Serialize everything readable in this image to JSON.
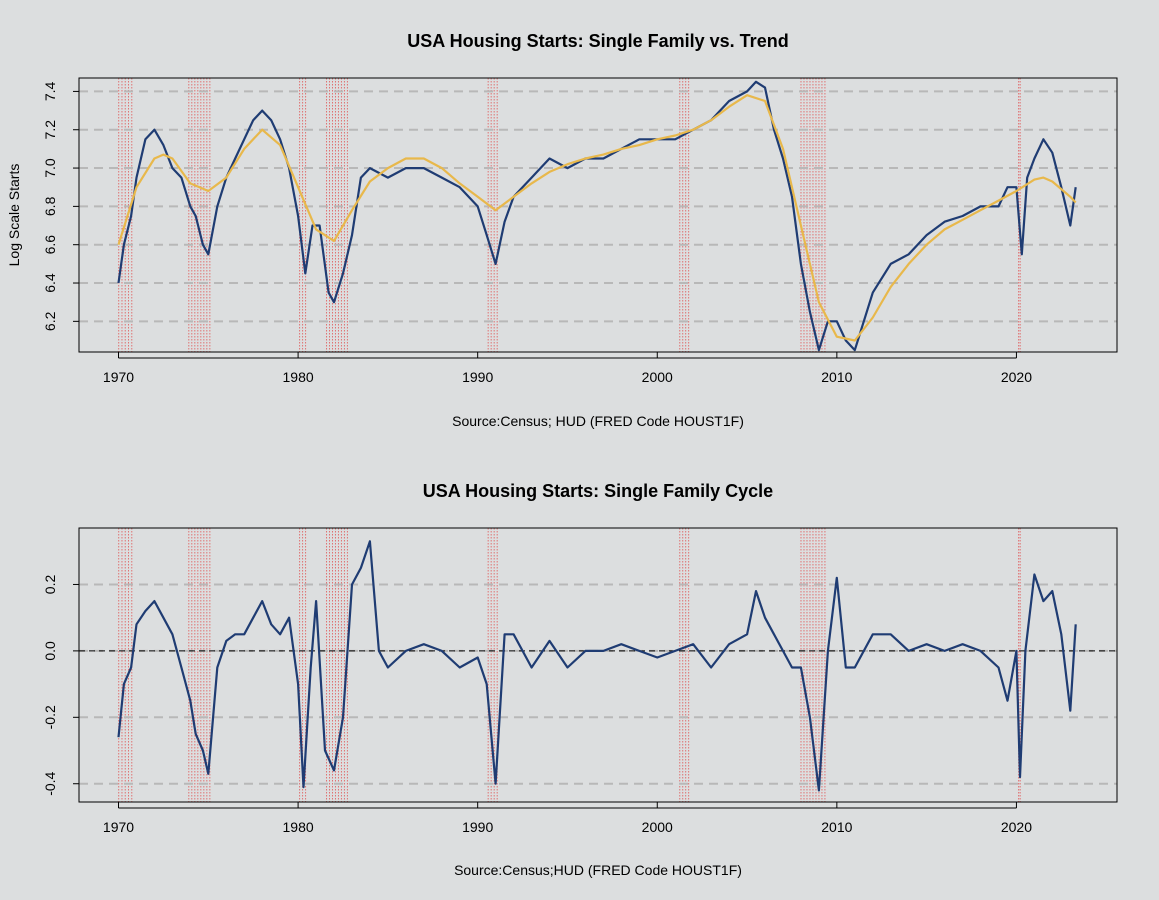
{
  "colors": {
    "background": "#dcdedf",
    "series": "#1f3c73",
    "trend": "#e8b84b",
    "recession": "#e06060",
    "gridline": "#b8b8b8",
    "zeroline": "#000000"
  },
  "recessions": [
    [
      1969.92,
      1970.83
    ],
    [
      1973.83,
      1975.17
    ],
    [
      1980.0,
      1980.5
    ],
    [
      1981.5,
      1982.83
    ],
    [
      1990.5,
      1991.17
    ],
    [
      2001.17,
      2001.83
    ],
    [
      2007.92,
      2009.42
    ],
    [
      2020.08,
      2020.25
    ]
  ],
  "chart_data": [
    {
      "type": "line",
      "title": "USA Housing Starts: Single Family vs. Trend",
      "xlabel": "Source:Census; HUD (FRED Code HOUST1F)",
      "ylabel": "Log Scale Starts",
      "xlim": [
        1967.8,
        2025.6
      ],
      "ylim": [
        6.04,
        7.47
      ],
      "x_ticks": [
        1970,
        1980,
        1990,
        2000,
        2010,
        2020
      ],
      "x_tick_labels": [
        "1970",
        "1980",
        "1990",
        "2000",
        "2010",
        "2020"
      ],
      "y_ticks": [
        6.2,
        6.4,
        6.6,
        6.8,
        7.0,
        7.2,
        7.4
      ],
      "y_tick_labels": [
        "6.2",
        "6.4",
        "6.6",
        "6.8",
        "7.0",
        "7.2",
        "7.4"
      ],
      "grid": "horizontal dashed",
      "series": [
        {
          "role": "actual",
          "x": [
            1970.0,
            1970.3,
            1970.7,
            1971.0,
            1971.5,
            1972.0,
            1972.5,
            1973.0,
            1973.5,
            1974.0,
            1974.3,
            1974.7,
            1975.0,
            1975.5,
            1976.0,
            1976.5,
            1977.0,
            1977.5,
            1978.0,
            1978.5,
            1979.0,
            1979.5,
            1980.0,
            1980.4,
            1980.8,
            1981.2,
            1981.7,
            1982.0,
            1982.5,
            1983.0,
            1983.5,
            1984.0,
            1985.0,
            1986.0,
            1987.0,
            1988.0,
            1989.0,
            1990.0,
            1990.5,
            1991.0,
            1991.5,
            1992.0,
            1993.0,
            1994.0,
            1995.0,
            1996.0,
            1997.0,
            1998.0,
            1999.0,
            2000.0,
            2001.0,
            2002.0,
            2003.0,
            2004.0,
            2005.0,
            2005.5,
            2006.0,
            2006.5,
            2007.0,
            2007.5,
            2008.0,
            2008.5,
            2009.0,
            2009.5,
            2010.0,
            2010.5,
            2011.0,
            2011.5,
            2012.0,
            2013.0,
            2014.0,
            2015.0,
            2016.0,
            2017.0,
            2018.0,
            2019.0,
            2019.5,
            2020.0,
            2020.3,
            2020.6,
            2021.0,
            2021.5,
            2022.0,
            2022.5,
            2023.0,
            2023.3
          ],
          "y": [
            6.4,
            6.6,
            6.75,
            6.95,
            7.15,
            7.2,
            7.12,
            7.0,
            6.95,
            6.8,
            6.75,
            6.6,
            6.55,
            6.8,
            6.95,
            7.05,
            7.15,
            7.25,
            7.3,
            7.25,
            7.15,
            7.0,
            6.75,
            6.45,
            6.7,
            6.7,
            6.35,
            6.3,
            6.45,
            6.65,
            6.95,
            7.0,
            6.95,
            7.0,
            7.0,
            6.95,
            6.9,
            6.8,
            6.65,
            6.5,
            6.72,
            6.85,
            6.95,
            7.05,
            7.0,
            7.05,
            7.05,
            7.1,
            7.15,
            7.15,
            7.15,
            7.2,
            7.25,
            7.35,
            7.4,
            7.45,
            7.42,
            7.2,
            7.05,
            6.85,
            6.5,
            6.25,
            6.05,
            6.2,
            6.2,
            6.1,
            6.05,
            6.2,
            6.35,
            6.5,
            6.55,
            6.65,
            6.72,
            6.75,
            6.8,
            6.8,
            6.9,
            6.9,
            6.55,
            6.95,
            7.05,
            7.15,
            7.08,
            6.9,
            6.7,
            6.9
          ]
        },
        {
          "role": "trend",
          "x": [
            1970.0,
            1971.0,
            1972.0,
            1972.5,
            1973.0,
            1974.0,
            1975.0,
            1976.0,
            1977.0,
            1978.0,
            1979.0,
            1980.0,
            1981.0,
            1982.0,
            1983.0,
            1984.0,
            1985.0,
            1986.0,
            1987.0,
            1988.0,
            1989.0,
            1990.0,
            1991.0,
            1992.0,
            1993.0,
            1994.0,
            1995.0,
            1996.0,
            1997.0,
            1998.0,
            1999.0,
            2000.0,
            2001.0,
            2002.0,
            2003.0,
            2004.0,
            2005.0,
            2006.0,
            2007.0,
            2008.0,
            2009.0,
            2010.0,
            2011.0,
            2012.0,
            2013.0,
            2014.0,
            2015.0,
            2016.0,
            2017.0,
            2018.0,
            2019.0,
            2020.0,
            2021.0,
            2021.5,
            2022.0,
            2023.0,
            2023.3
          ],
          "y": [
            6.6,
            6.9,
            7.05,
            7.07,
            7.05,
            6.92,
            6.88,
            6.95,
            7.1,
            7.2,
            7.12,
            6.9,
            6.68,
            6.62,
            6.78,
            6.93,
            7.0,
            7.05,
            7.05,
            7.0,
            6.92,
            6.85,
            6.78,
            6.85,
            6.92,
            6.98,
            7.02,
            7.05,
            7.07,
            7.1,
            7.12,
            7.15,
            7.17,
            7.2,
            7.25,
            7.32,
            7.38,
            7.35,
            7.1,
            6.7,
            6.3,
            6.12,
            6.1,
            6.22,
            6.38,
            6.5,
            6.6,
            6.68,
            6.73,
            6.78,
            6.83,
            6.88,
            6.94,
            6.95,
            6.93,
            6.85,
            6.82
          ]
        }
      ]
    },
    {
      "type": "line",
      "title": "USA Housing Starts: Single Family Cycle",
      "xlabel": "Source:Census;HUD (FRED Code HOUST1F)",
      "ylabel": "",
      "xlim": [
        1967.8,
        2025.6
      ],
      "ylim": [
        -0.455,
        0.37
      ],
      "x_ticks": [
        1970,
        1980,
        1990,
        2000,
        2010,
        2020
      ],
      "x_tick_labels": [
        "1970",
        "1980",
        "1990",
        "2000",
        "2010",
        "2020"
      ],
      "y_ticks": [
        -0.4,
        -0.2,
        0.0,
        0.2
      ],
      "y_tick_labels": [
        "-0.4",
        "-0.2",
        "0.0",
        "0.2"
      ],
      "grid": "horizontal dashed",
      "series": [
        {
          "role": "cycle",
          "x": [
            1970.0,
            1970.3,
            1970.7,
            1971.0,
            1971.5,
            1972.0,
            1972.5,
            1973.0,
            1973.5,
            1974.0,
            1974.3,
            1974.7,
            1975.0,
            1975.5,
            1976.0,
            1976.5,
            1977.0,
            1977.5,
            1978.0,
            1978.5,
            1979.0,
            1979.5,
            1980.0,
            1980.3,
            1980.7,
            1981.0,
            1981.5,
            1982.0,
            1982.5,
            1983.0,
            1983.5,
            1984.0,
            1984.5,
            1985.0,
            1986.0,
            1987.0,
            1988.0,
            1989.0,
            1990.0,
            1990.5,
            1991.0,
            1991.5,
            1992.0,
            1993.0,
            1994.0,
            1995.0,
            1996.0,
            1997.0,
            1998.0,
            1999.0,
            2000.0,
            2001.0,
            2002.0,
            2003.0,
            2004.0,
            2005.0,
            2005.5,
            2006.0,
            2006.5,
            2007.0,
            2007.5,
            2008.0,
            2008.5,
            2009.0,
            2009.5,
            2010.0,
            2010.5,
            2011.0,
            2012.0,
            2013.0,
            2014.0,
            2015.0,
            2016.0,
            2017.0,
            2018.0,
            2019.0,
            2019.5,
            2020.0,
            2020.2,
            2020.5,
            2021.0,
            2021.5,
            2022.0,
            2022.5,
            2023.0,
            2023.3
          ],
          "y": [
            -0.26,
            -0.1,
            -0.05,
            0.08,
            0.12,
            0.15,
            0.1,
            0.05,
            -0.05,
            -0.15,
            -0.25,
            -0.3,
            -0.37,
            -0.05,
            0.03,
            0.05,
            0.05,
            0.1,
            0.15,
            0.08,
            0.05,
            0.1,
            -0.1,
            -0.41,
            -0.05,
            0.15,
            -0.3,
            -0.36,
            -0.2,
            0.2,
            0.25,
            0.33,
            0.0,
            -0.05,
            0.0,
            0.02,
            0.0,
            -0.05,
            -0.02,
            -0.1,
            -0.4,
            0.05,
            0.05,
            -0.05,
            0.03,
            -0.05,
            0.0,
            0.0,
            0.02,
            0.0,
            -0.02,
            0.0,
            0.02,
            -0.05,
            0.02,
            0.05,
            0.18,
            0.1,
            0.05,
            0.0,
            -0.05,
            -0.05,
            -0.2,
            -0.42,
            0.0,
            0.22,
            -0.05,
            -0.05,
            0.05,
            0.05,
            0.0,
            0.02,
            0.0,
            0.02,
            0.0,
            -0.05,
            -0.15,
            0.0,
            -0.38,
            0.0,
            0.23,
            0.15,
            0.18,
            0.05,
            -0.18,
            0.08
          ]
        }
      ]
    }
  ]
}
